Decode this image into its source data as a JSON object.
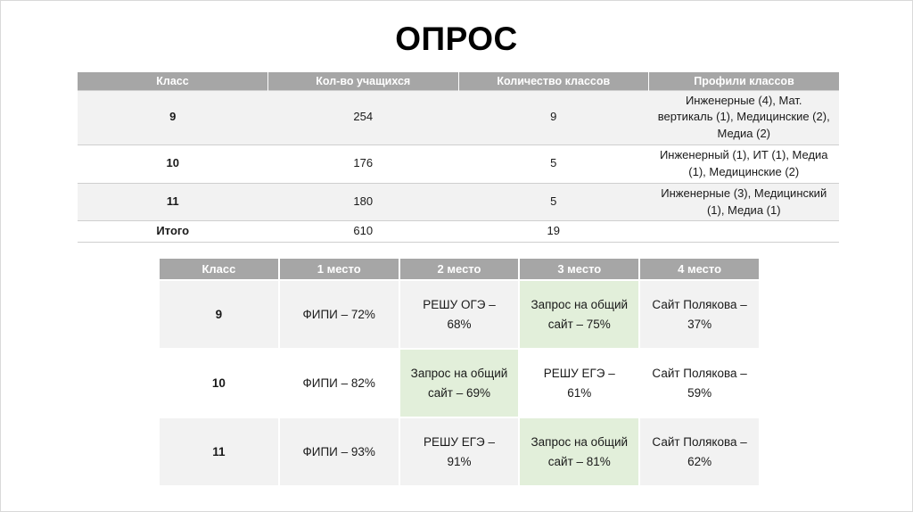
{
  "title": "ОПРОС",
  "table1": {
    "headers": [
      "Класс",
      "Кол-во учащихся",
      "Количество классов",
      "Профили классов"
    ],
    "rows": [
      [
        "9",
        "254",
        "9",
        "Инженерные (4), Мат. вертикаль (1), Медицинские (2), Медиа (2)"
      ],
      [
        "10",
        "176",
        "5",
        "Инженерный (1), ИТ (1), Медиа (1), Медицинские (2)"
      ],
      [
        "11",
        "180",
        "5",
        "Инженерные (3), Медицинский (1), Медиа (1)"
      ],
      [
        "Итого",
        "610",
        "19",
        ""
      ]
    ]
  },
  "table2": {
    "headers": [
      "Класс",
      "1 место",
      "2 место",
      "3 место",
      "4 место"
    ],
    "rows": [
      [
        "9",
        "ФИПИ – 72%",
        "РЕШУ ОГЭ – 68%",
        "Запрос на общий сайт – 75%",
        "Сайт Полякова – 37%"
      ],
      [
        "10",
        "ФИПИ – 82%",
        "Запрос на общий сайт – 69%",
        "РЕШУ ЕГЭ – 61%",
        "Сайт Полякова – 59%"
      ],
      [
        "11",
        "ФИПИ – 93%",
        "РЕШУ ЕГЭ – 91%",
        "Запрос на общий сайт – 81%",
        "Сайт Полякова – 62%"
      ]
    ]
  },
  "colors": {
    "header_bg": "#a6a6a6",
    "band_bg": "#f2f2f2",
    "highlight_bg": "#e2efda",
    "title_color": "#000000"
  }
}
